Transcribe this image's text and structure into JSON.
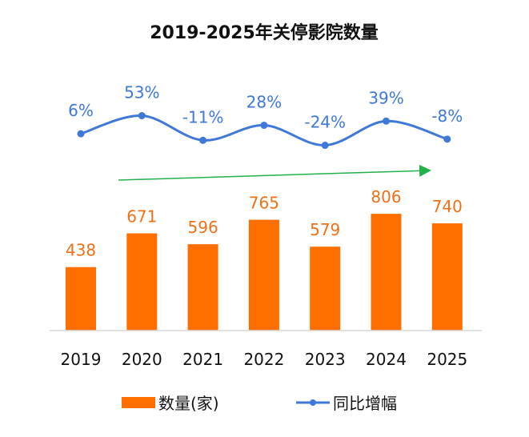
{
  "chart_data": {
    "type": "bar",
    "title": "2019-2025年关停影院数量",
    "categories": [
      "2019",
      "2020",
      "2021",
      "2022",
      "2023",
      "2024",
      "2025"
    ],
    "series": [
      {
        "name": "数量(家)",
        "type": "bar",
        "values": [
          438,
          671,
          596,
          765,
          579,
          806,
          740
        ],
        "labels": [
          "438",
          "671",
          "596",
          "765",
          "579",
          "806",
          "740"
        ],
        "color": "#ff6f00"
      },
      {
        "name": "同比增幅",
        "type": "line",
        "smooth": true,
        "values": [
          6,
          53,
          -11,
          28,
          -24,
          39,
          -8
        ],
        "labels": [
          "6%",
          "53%",
          "-11%",
          "28%",
          "-24%",
          "39%",
          "-8%"
        ],
        "color": "#3e78d8"
      }
    ],
    "trend_arrow_color": "#22b04a",
    "grid": false,
    "legend_position": "bottom"
  }
}
